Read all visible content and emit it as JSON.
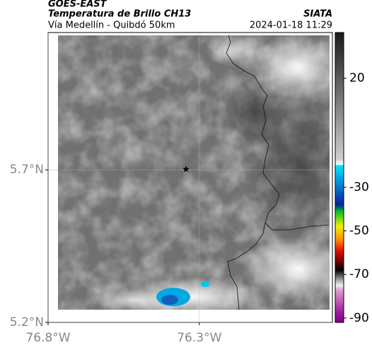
{
  "header": {
    "satellite": "GOES-EAST",
    "product": "Temperatura de Brillo CH13",
    "route": "Vía Medellín - Quibdó 50km",
    "source": "SIATA",
    "datetime": "2024-01-18 11:29"
  },
  "map": {
    "xlim": [
      -76.8,
      -75.86
    ],
    "ylim": [
      5.2,
      6.15
    ],
    "xticks": [
      {
        "value": -76.8,
        "label": "76.8°W"
      },
      {
        "value": -76.3,
        "label": "76.3°W"
      }
    ],
    "yticks": [
      {
        "value": 5.2,
        "label": "5.2°N"
      },
      {
        "value": 5.7,
        "label": "5.7°N"
      }
    ],
    "marker": {
      "lon": -76.344,
      "lat": 5.702
    }
  },
  "colorbar": {
    "lim": [
      -92,
      41
    ],
    "ticks": [
      20,
      -30,
      -50,
      -70,
      -90
    ],
    "stops": [
      {
        "value": 41,
        "color": "#1a1a1a"
      },
      {
        "value": 20,
        "color": "#5a5a5a"
      },
      {
        "value": -17,
        "color": "#cfcfcf"
      },
      {
        "value": -19.5,
        "color": "#ffffff"
      },
      {
        "value": -20,
        "color": "#00e5ff"
      },
      {
        "value": -38,
        "color": "#0a1fa0"
      },
      {
        "value": -41,
        "color": "#00c020"
      },
      {
        "value": -48,
        "color": "#f0f000"
      },
      {
        "value": -54,
        "color": "#ff9000"
      },
      {
        "value": -59,
        "color": "#e01000"
      },
      {
        "value": -64,
        "color": "#700000"
      },
      {
        "value": -68,
        "color": "#000000"
      },
      {
        "value": -72,
        "color": "#909090"
      },
      {
        "value": -75,
        "color": "#f0f0f0"
      },
      {
        "value": -77,
        "color": "#e0a0d0"
      },
      {
        "value": -87,
        "color": "#a020a0"
      },
      {
        "value": -92,
        "color": "#800080"
      }
    ]
  }
}
